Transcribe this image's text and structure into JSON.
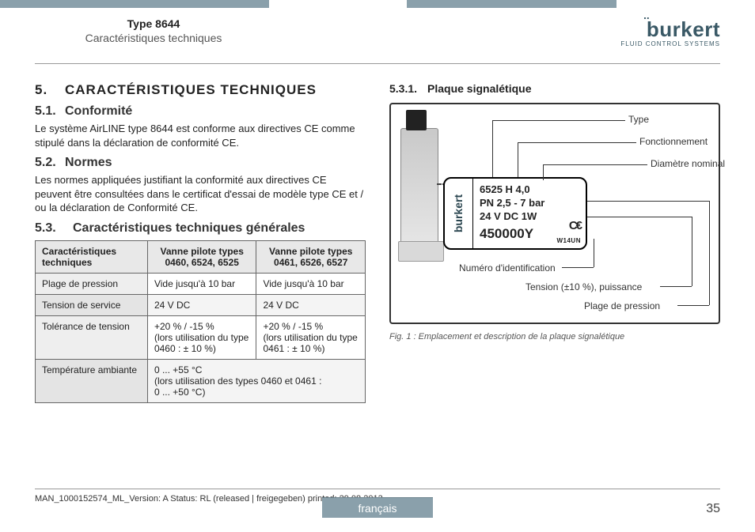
{
  "header": {
    "type_line": "Type 8644",
    "subtitle": "Caractéristiques techniques",
    "brand_name": "burkert",
    "brand_tag": "FLUID CONTROL SYSTEMS"
  },
  "left": {
    "h1_num": "5.",
    "h1": "CARACTÉRISTIQUES TECHNIQUES",
    "s1_num": "5.1.",
    "s1_title": "Conformité",
    "s1_text": "Le système AirLINE type 8644 est conforme aux directives CE comme stipulé dans la déclaration de conformité CE.",
    "s2_num": "5.2.",
    "s2_title": "Normes",
    "s2_text": "Les normes appliquées justifiant la conformité aux directives CE peuvent être consultées dans le certificat d'essai de modèle type CE et / ou la déclaration de Conformité CE.",
    "s3_num": "5.3.",
    "s3_title": "Caractéristiques techniques générales",
    "table": {
      "headers": [
        "Caractéristiques techniques",
        "Vanne pilote types 0460, 6524, 6525",
        "Vanne pilote types 0461, 6526, 6527"
      ],
      "rows": [
        [
          "Plage de pression",
          "Vide jusqu'à 10 bar",
          "Vide jusqu'à 10 bar"
        ],
        [
          "Tension de service",
          "24 V DC",
          "24 V DC"
        ],
        [
          "Tolérance de tension",
          "+20 % / -15 %\n(lors utilisation du type 0460 : ± 10 %)",
          "+20 % / -15 %\n(lors utilisation du type 0461 : ± 10 %)"
        ],
        [
          "Température ambiante",
          "0 ... +55 °C\n(lors utilisation des types 0460 et 0461 :\n0 ... +50 °C)",
          ""
        ]
      ]
    }
  },
  "right": {
    "s31_num": "5.3.1.",
    "s31_title": "Plaque signalétique",
    "callouts": {
      "type": "Type",
      "func": "Fonctionnement",
      "diam": "Diamètre nominal",
      "id": "Numéro d'identification",
      "volt": "Tension (±10 %), puissance",
      "press": "Plage de pression"
    },
    "plate": {
      "brand": "burkert",
      "l1": "6525   H   4,0",
      "l2": "PN 2,5 - 7 bar",
      "l3": "24 V DC   1W",
      "id": "450000Y",
      "ce": "C€",
      "small": "W14UN"
    },
    "fig_caption": "Fig. 1 :    Emplacement et description de la plaque signalétique"
  },
  "footer": {
    "note": "MAN_1000152574_ML_Version: A Status: RL (released | freigegeben)  printed: 29.08.2013",
    "lang": "français",
    "page": "35"
  }
}
